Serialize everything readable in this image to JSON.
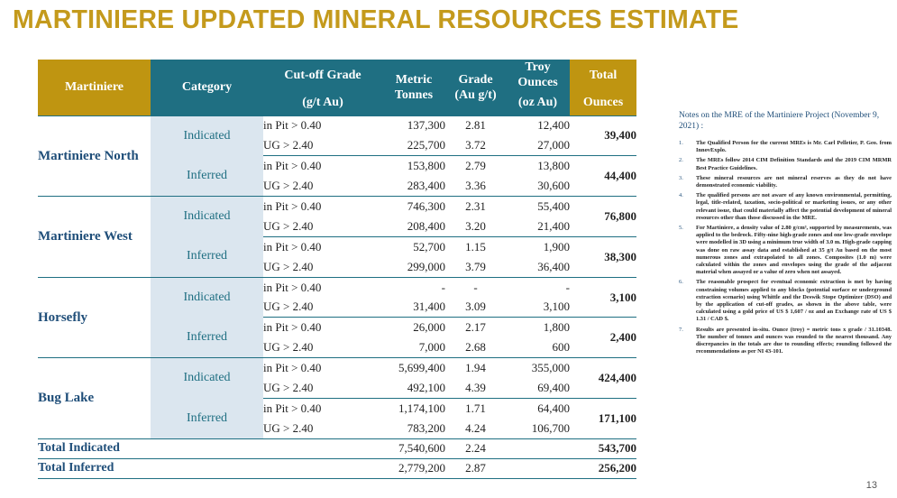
{
  "title": "MARTINIERE UPDATED MINERAL RESOURCES ESTIMATE",
  "headers": {
    "site": "Martiniere",
    "category": "Category",
    "cutoff_line1": "Cut-off Grade",
    "cutoff_line2": "(g/t Au)",
    "tonnes_line1": "Metric",
    "tonnes_line2": "Tonnes",
    "grade_line1": "Grade",
    "grade_line2": "(Au g/t)",
    "troy_line1": "Troy",
    "troy_line2": "Ounces",
    "troy_line3": "(oz Au)",
    "total_line1": "Total",
    "total_line2": "Ounces"
  },
  "sites": [
    {
      "name": "Martiniere North",
      "groups": [
        {
          "category": "Indicated",
          "total": "39,400",
          "rows": [
            {
              "cutoff": "in Pit > 0.40",
              "tonnes": "137,300",
              "grade": "2.81",
              "ounces": "12,400"
            },
            {
              "cutoff": "UG > 2.40",
              "tonnes": "225,700",
              "grade": "3.72",
              "ounces": "27,000"
            }
          ]
        },
        {
          "category": "Inferred",
          "total": "44,400",
          "rows": [
            {
              "cutoff": "in Pit > 0.40",
              "tonnes": "153,800",
              "grade": "2.79",
              "ounces": "13,800"
            },
            {
              "cutoff": "UG > 2.40",
              "tonnes": "283,400",
              "grade": "3.36",
              "ounces": "30,600"
            }
          ]
        }
      ]
    },
    {
      "name": "Martiniere West",
      "groups": [
        {
          "category": "Indicated",
          "total": "76,800",
          "rows": [
            {
              "cutoff": "in Pit > 0.40",
              "tonnes": "746,300",
              "grade": "2.31",
              "ounces": "55,400"
            },
            {
              "cutoff": "UG > 2.40",
              "tonnes": "208,400",
              "grade": "3.20",
              "ounces": "21,400"
            }
          ]
        },
        {
          "category": "Inferred",
          "total": "38,300",
          "rows": [
            {
              "cutoff": "in Pit > 0.40",
              "tonnes": "52,700",
              "grade": "1.15",
              "ounces": "1,900"
            },
            {
              "cutoff": "UG > 2.40",
              "tonnes": "299,000",
              "grade": "3.79",
              "ounces": "36,400"
            }
          ]
        }
      ]
    },
    {
      "name": "Horsefly",
      "groups": [
        {
          "category": "Indicated",
          "total": "3,100",
          "rows": [
            {
              "cutoff": "in Pit > 0.40",
              "tonnes": "-",
              "grade": "-",
              "ounces": "-"
            },
            {
              "cutoff": "UG > 2.40",
              "tonnes": "31,400",
              "grade": "3.09",
              "ounces": "3,100"
            }
          ]
        },
        {
          "category": "Inferred",
          "total": "2,400",
          "rows": [
            {
              "cutoff": "in Pit > 0.40",
              "tonnes": "26,000",
              "grade": "2.17",
              "ounces": "1,800"
            },
            {
              "cutoff": "UG > 2.40",
              "tonnes": "7,000",
              "grade": "2.68",
              "ounces": "600"
            }
          ]
        }
      ]
    },
    {
      "name": "Bug Lake",
      "groups": [
        {
          "category": "Indicated",
          "total": "424,400",
          "rows": [
            {
              "cutoff": "in Pit > 0.40",
              "tonnes": "5,699,400",
              "grade": "1.94",
              "ounces": "355,000"
            },
            {
              "cutoff": "UG > 2.40",
              "tonnes": "492,100",
              "grade": "4.39",
              "ounces": "69,400"
            }
          ]
        },
        {
          "category": "Inferred",
          "total": "171,100",
          "rows": [
            {
              "cutoff": "in Pit > 0.40",
              "tonnes": "1,174,100",
              "grade": "1.71",
              "ounces": "64,400"
            },
            {
              "cutoff": "UG > 2.40",
              "tonnes": "783,200",
              "grade": "4.24",
              "ounces": "106,700"
            }
          ]
        }
      ]
    }
  ],
  "totals": [
    {
      "label": "Total Indicated",
      "tonnes": "7,540,600",
      "grade": "2.24",
      "total": "543,700"
    },
    {
      "label": "Total Inferred",
      "tonnes": "2,779,200",
      "grade": "2.87",
      "total": "256,200"
    }
  ],
  "notes": {
    "title": "Notes on the MRE of the Martiniere Project (November 9, 2021) :",
    "items": [
      "The Qualified Person for the current MREs is Mr. Carl Pelletier, P. Geo. from InnovExplo.",
      "The MREs follow 2014 CIM Definition Standards and the 2019 CIM MRMR Best Practice Guidelines.",
      "These mineral resources are not mineral reserves as they do not have demonstrated economic viability.",
      "The qualified persons are not aware of any known environmental, permitting, legal, title-related, taxation, socio-political or marketing issues, or any other relevant issue, that could materially affect the potential development of mineral resources other than those discussed in the MRE.",
      "For Martiniere, a density value of 2.80 g/cm³, supported by measurements, was applied to the bedrock. Fifty-nine high-grade zones and one low-grade envelope were modelled in 3D using a minimum true width of 3.0 m. High-grade capping was done on raw assay data and established at 35 g/t Au based on the most numerous zones and extrapolated to all zones. Composites (1.0 m) were calculated within the zones and envelopes using the grade of the adjacent material when assayed or a value of zero when not assayed.",
      "The reasonable prospect for eventual economic extraction is met by having constraining volumes applied to any blocks (potential surface or underground extraction scenario) using Whittle and the Deswik Stope Optimizer (DSO) and by the application of cut-off grades, as shown in the above table, were calculated using a gold price of US $ 1,607 / oz and an Exchange rate of US $ 1.31 / CAD $.",
      "Results are presented in-situ. Ounce (troy) = metric tons x grade / 31.10348. The number of tonnes and ounces was rounded to the nearest thousand. Any discrepancies in the totals are due to rounding effects; rounding followed the recommendations as per NI 43-101."
    ]
  },
  "page_number": "13"
}
